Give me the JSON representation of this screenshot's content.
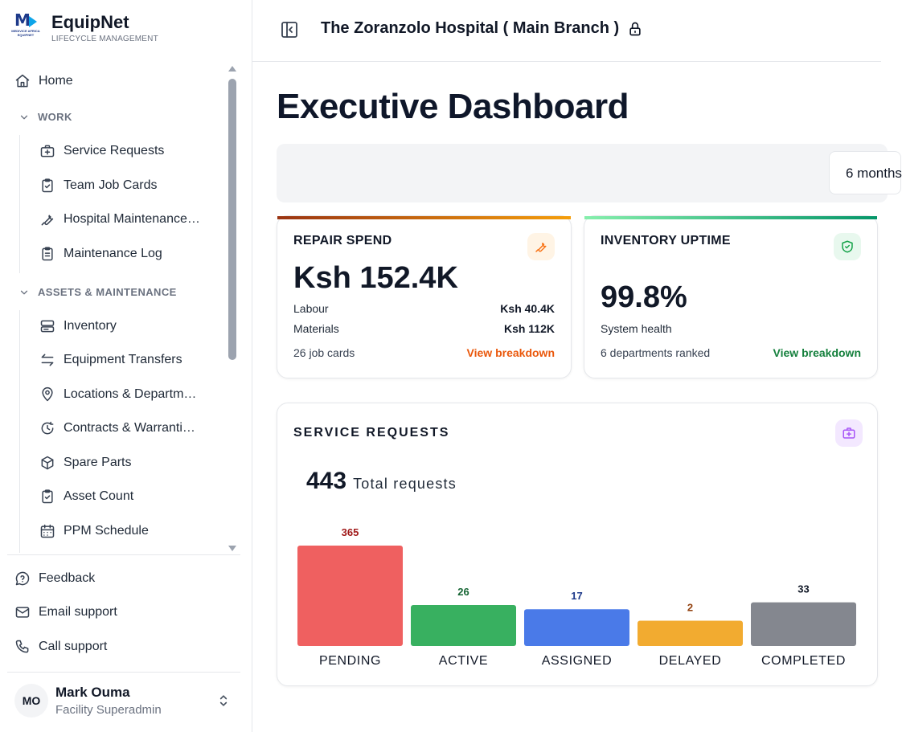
{
  "brand": {
    "name": "EquipNet",
    "subtitle": "LIFECYCLE MANAGEMENT",
    "logo_text": "MEDIVICE AFRICA EQUIPNET"
  },
  "sidebar": {
    "home": "Home",
    "sections": [
      {
        "label": "WORK",
        "items": [
          {
            "label": "Service Requests",
            "icon": "medical-bag-icon"
          },
          {
            "label": "Team Job Cards",
            "icon": "clipboard-check-icon"
          },
          {
            "label": "Hospital Maintenance…",
            "icon": "wrench-icon"
          },
          {
            "label": "Maintenance Log",
            "icon": "clipboard-list-icon"
          }
        ]
      },
      {
        "label": "ASSETS & MAINTENANCE",
        "items": [
          {
            "label": "Inventory",
            "icon": "server-icon"
          },
          {
            "label": "Equipment Transfers",
            "icon": "arrows-transfer-icon"
          },
          {
            "label": "Locations & Departm…",
            "icon": "map-pin-icon"
          },
          {
            "label": "Contracts & Warranti…",
            "icon": "clock-refresh-icon"
          },
          {
            "label": "Spare Parts",
            "icon": "package-icon"
          },
          {
            "label": "Asset Count",
            "icon": "clipboard-check-icon"
          },
          {
            "label": "PPM Schedule",
            "icon": "calendar-icon"
          }
        ]
      }
    ],
    "support": [
      {
        "label": "Feedback",
        "icon": "message-question-icon"
      },
      {
        "label": "Email support",
        "icon": "mail-icon"
      },
      {
        "label": "Call support",
        "icon": "phone-icon"
      }
    ],
    "user": {
      "initials": "MO",
      "name": "Mark Ouma",
      "role": "Facility Superadmin"
    }
  },
  "header": {
    "hospital": "The Zoranzolo Hospital ( Main Branch )"
  },
  "page": {
    "title": "Executive Dashboard",
    "period": "6 months"
  },
  "repair_spend": {
    "title": "REPAIR SPEND",
    "amount": "Ksh 152.4K",
    "rows": [
      {
        "label": "Labour",
        "value": "Ksh 40.4K"
      },
      {
        "label": "Materials",
        "value": "Ksh 112K"
      }
    ],
    "footer": "26 job cards",
    "link": "View breakdown",
    "link_color": "#ea580c",
    "accent_from": "#9a3412",
    "accent_to": "#f59e0b"
  },
  "inventory_uptime": {
    "title": "INVENTORY UPTIME",
    "value": "99.8%",
    "caption": "System health",
    "footer": "6 departments ranked",
    "link": "View breakdown",
    "link_color": "#15803d",
    "accent_from": "#86efac",
    "accent_to": "#059669"
  },
  "service_requests": {
    "title": "SERVICE REQUESTS",
    "total": "443",
    "total_label": "Total requests"
  },
  "chart_data": {
    "type": "bar",
    "categories": [
      "PENDING",
      "ACTIVE",
      "ASSIGNED",
      "DELAYED",
      "COMPLETED"
    ],
    "values": [
      365,
      26,
      17,
      2,
      33
    ],
    "colors": [
      "#ef6060",
      "#38b060",
      "#4a7ae8",
      "#f2ab30",
      "#84878f"
    ],
    "label_colors": [
      "#a01818",
      "#166534",
      "#1e3a8a",
      "#92400e",
      "#111827"
    ]
  }
}
